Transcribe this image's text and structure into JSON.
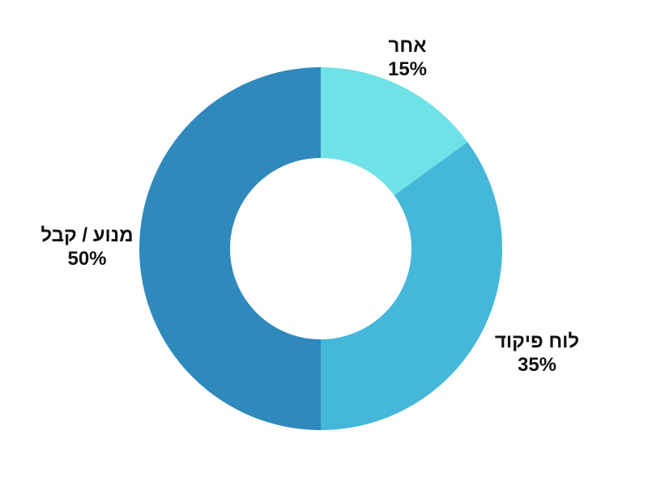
{
  "page": {
    "background_color": "#ffffff",
    "text_color": "#111111"
  },
  "chart_data": {
    "type": "pie",
    "subtype": "donut",
    "title": "",
    "categories": [
      "אחר",
      "לוח פיקוד",
      "מנוע / קבל"
    ],
    "values": [
      15,
      35,
      50
    ],
    "unit": "%",
    "colors": [
      "#6FE2E7",
      "#45B7D9",
      "#2F89BC"
    ],
    "start_angle_deg": 0,
    "direction": "clockwise",
    "inner_radius_ratio": 0.5,
    "legend": "none",
    "labels": [
      {
        "name": "אחר",
        "value_text": "15%"
      },
      {
        "name": "לוח פיקוד",
        "value_text": "35%"
      },
      {
        "name": "מנוע / קבל",
        "value_text": "50%"
      }
    ]
  }
}
